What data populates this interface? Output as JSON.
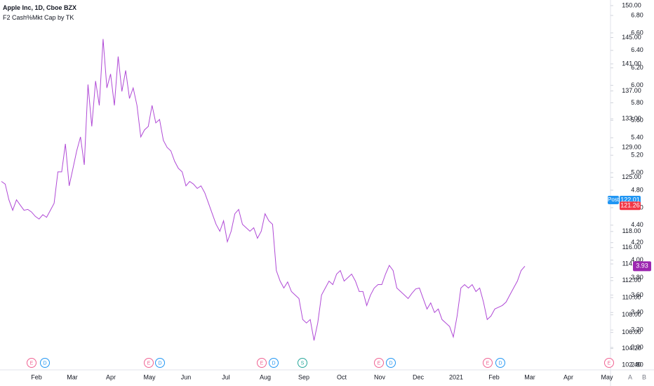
{
  "header": {
    "symbol": "Apple Inc, 1D, Cboe BZX",
    "indicator": "F2 Cash%Mkt Cap by TK"
  },
  "chart_data": {
    "type": "line",
    "series": [
      {
        "name": "F2 Cash%Mkt Cap by TK",
        "color": "#b04ad6",
        "values": [
          4.9,
          4.87,
          4.69,
          4.57,
          4.69,
          4.63,
          4.57,
          4.58,
          4.55,
          4.5,
          4.47,
          4.52,
          4.49,
          4.57,
          4.65,
          5.01,
          5.01,
          5.33,
          4.85,
          5.05,
          5.25,
          5.41,
          5.09,
          6.01,
          5.53,
          6.05,
          5.77,
          6.53,
          5.97,
          6.13,
          5.77,
          6.33,
          5.93,
          6.17,
          5.85,
          5.97,
          5.77,
          5.41,
          5.49,
          5.53,
          5.77,
          5.57,
          5.61,
          5.37,
          5.29,
          5.25,
          5.13,
          5.05,
          5.01,
          4.85,
          4.9,
          4.87,
          4.82,
          4.85,
          4.77,
          4.65,
          4.53,
          4.41,
          4.33,
          4.45,
          4.21,
          4.33,
          4.53,
          4.58,
          4.41,
          4.37,
          4.33,
          4.37,
          4.25,
          4.33,
          4.53,
          4.45,
          4.41,
          3.88,
          3.76,
          3.68,
          3.75,
          3.64,
          3.6,
          3.56,
          3.32,
          3.28,
          3.32,
          3.08,
          3.28,
          3.6,
          3.68,
          3.76,
          3.72,
          3.84,
          3.88,
          3.76,
          3.8,
          3.84,
          3.76,
          3.64,
          3.64,
          3.48,
          3.6,
          3.68,
          3.72,
          3.72,
          3.84,
          3.94,
          3.88,
          3.68,
          3.64,
          3.6,
          3.56,
          3.62,
          3.67,
          3.68,
          3.56,
          3.44,
          3.51,
          3.4,
          3.44,
          3.32,
          3.28,
          3.24,
          3.12,
          3.36,
          3.68,
          3.72,
          3.68,
          3.72,
          3.64,
          3.68,
          3.52,
          3.32,
          3.36,
          3.44,
          3.46,
          3.48,
          3.52,
          3.6,
          3.68,
          3.76,
          3.88,
          3.93
        ]
      }
    ],
    "months": [
      "Feb",
      "Mar",
      "Apr",
      "May",
      "Jun",
      "Jul",
      "Aug",
      "Sep",
      "Oct",
      "Nov",
      "Dec",
      "2021",
      "Feb",
      "Mar",
      "Apr",
      "May"
    ],
    "ylim": [
      2.8,
      6.8
    ],
    "yticks": [
      {
        "value": 6.8,
        "label": "6.80"
      },
      {
        "value": 6.6,
        "label": "6.60"
      },
      {
        "value": 6.4,
        "label": "6.40"
      },
      {
        "value": 6.2,
        "label": "6.20"
      },
      {
        "value": 6,
        "label": "6.00"
      },
      {
        "value": 5.8,
        "label": "5.80"
      },
      {
        "value": 5.6,
        "label": "5.60"
      },
      {
        "value": 5.4,
        "label": "5.40"
      },
      {
        "value": 5.2,
        "label": "5.20"
      },
      {
        "value": 5,
        "label": "5.00"
      },
      {
        "value": 4.8,
        "label": "4.80"
      },
      {
        "value": 4.6,
        "label": "4.60"
      },
      {
        "value": 4.4,
        "label": "4.40"
      },
      {
        "value": 4.2,
        "label": "4.20"
      },
      {
        "value": 4,
        "label": "4.00"
      },
      {
        "value": 3.8,
        "label": "3.80"
      },
      {
        "value": 3.6,
        "label": "3.60"
      },
      {
        "value": 3.4,
        "label": "3.40"
      },
      {
        "value": 3.2,
        "label": "3.20"
      },
      {
        "value": 3,
        "label": "3.00"
      },
      {
        "value": 2.8,
        "label": "2.80"
      }
    ],
    "y2lim": [
      102.4,
      150
    ],
    "y2log": true,
    "y2ticks": [
      {
        "value": 150,
        "label": "150.00"
      },
      {
        "value": 145,
        "label": "145.00"
      },
      {
        "value": 141,
        "label": "141.00"
      },
      {
        "value": 137,
        "label": "137.00"
      },
      {
        "value": 133,
        "label": "133.00"
      },
      {
        "value": 129,
        "label": "129.00"
      },
      {
        "value": 125,
        "label": "125.00"
      },
      {
        "value": 118,
        "label": "118.00"
      },
      {
        "value": 116,
        "label": "116.00"
      },
      {
        "value": 114,
        "label": "114.00"
      },
      {
        "value": 112,
        "label": "112.00"
      },
      {
        "value": 110,
        "label": "110.00"
      },
      {
        "value": 108,
        "label": "108.00"
      },
      {
        "value": 106,
        "label": "106.00"
      },
      {
        "value": 104.2,
        "label": "104.20"
      },
      {
        "value": 102.4,
        "label": "102.40"
      }
    ],
    "price_badges": {
      "post_label": "Post",
      "post_value": 122.01,
      "close_value": 121.26,
      "post_color": "#2196f3",
      "close_color": "#f23645"
    },
    "events": [
      "E",
      "D",
      "E",
      "D",
      "E",
      "D",
      "S",
      "E",
      "D",
      "E",
      "D",
      "E"
    ],
    "scale_buttons": [
      "A",
      "B"
    ]
  }
}
